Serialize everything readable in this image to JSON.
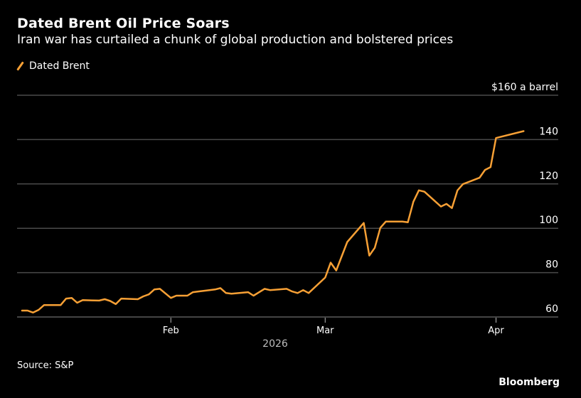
{
  "chart_data": {
    "type": "line",
    "title": "Dated Brent Oil Price Soars",
    "subtitle": "Iran war has curtailed a chunk of global production and bolstered prices",
    "legend": [
      {
        "name": "Dated Brent",
        "color": "#f7a035"
      }
    ],
    "legend_position": "top-left",
    "ylabel": "",
    "y_unit_label": "$160 a barrel",
    "ylim": [
      60,
      160
    ],
    "yticks": [
      60,
      80,
      100,
      120,
      140,
      160
    ],
    "ytick_labels": [
      "60",
      "80",
      "100",
      "120",
      "140",
      "$160 a barrel"
    ],
    "xlabel": "2026",
    "xticks": [
      {
        "label": "Feb",
        "day": 32
      },
      {
        "label": "Mar",
        "day": 60
      },
      {
        "label": "Apr",
        "day": 91
      }
    ],
    "x_domain_days": [
      1,
      101
    ],
    "grid": true,
    "series": [
      {
        "name": "Dated Brent",
        "points": [
          [
            5,
            62.9
          ],
          [
            6,
            62.9
          ],
          [
            7,
            62.0
          ],
          [
            8,
            63.2
          ],
          [
            9,
            65.4
          ],
          [
            12,
            65.4
          ],
          [
            13,
            68.3
          ],
          [
            14,
            68.6
          ],
          [
            15,
            66.4
          ],
          [
            16,
            67.6
          ],
          [
            19,
            67.4
          ],
          [
            20,
            68.0
          ],
          [
            21,
            67.2
          ],
          [
            22,
            65.8
          ],
          [
            23,
            68.3
          ],
          [
            26,
            68.0
          ],
          [
            27,
            69.3
          ],
          [
            28,
            70.2
          ],
          [
            29,
            72.4
          ],
          [
            30,
            72.7
          ],
          [
            32,
            68.6
          ],
          [
            33,
            69.6
          ],
          [
            35,
            69.6
          ],
          [
            36,
            71.2
          ],
          [
            37,
            71.5
          ],
          [
            39,
            72.1
          ],
          [
            40,
            72.4
          ],
          [
            41,
            73.0
          ],
          [
            42,
            70.8
          ],
          [
            43,
            70.5
          ],
          [
            46,
            71.2
          ],
          [
            47,
            69.6
          ],
          [
            49,
            72.7
          ],
          [
            50,
            72.1
          ],
          [
            53,
            72.7
          ],
          [
            54,
            71.5
          ],
          [
            55,
            70.8
          ],
          [
            56,
            72.1
          ],
          [
            57,
            70.8
          ],
          [
            60,
            77.8
          ],
          [
            61,
            84.5
          ],
          [
            62,
            81.0
          ],
          [
            64,
            93.8
          ],
          [
            67,
            102.4
          ],
          [
            68,
            87.7
          ],
          [
            69,
            91.2
          ],
          [
            70,
            100.2
          ],
          [
            71,
            103.0
          ],
          [
            74,
            103.0
          ],
          [
            75,
            102.7
          ],
          [
            76,
            112.0
          ],
          [
            77,
            117.1
          ],
          [
            78,
            116.5
          ],
          [
            81,
            109.8
          ],
          [
            82,
            111.0
          ],
          [
            83,
            109.1
          ],
          [
            84,
            117.1
          ],
          [
            85,
            119.9
          ],
          [
            88,
            122.8
          ],
          [
            89,
            126.3
          ],
          [
            90,
            127.6
          ],
          [
            91,
            140.7
          ],
          [
            96,
            143.8
          ]
        ]
      }
    ],
    "source": "Source: S&P",
    "brand": "Bloomberg"
  }
}
